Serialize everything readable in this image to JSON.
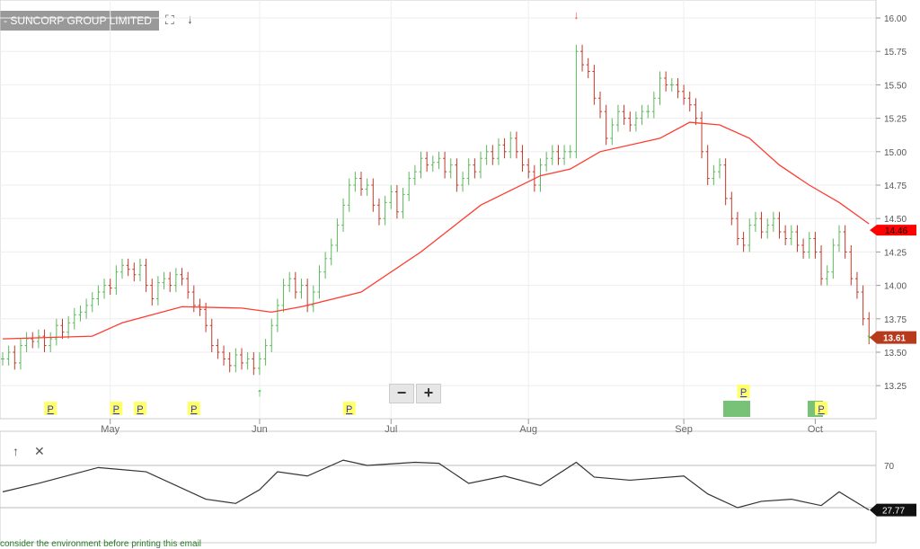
{
  "header": {
    "title": "- SUNCORP GROUP LIMITED",
    "icons": [
      "fullscreen-icon",
      "download-arrow-icon"
    ]
  },
  "zoom": {
    "minus": "−",
    "plus": "+"
  },
  "indicator_toolbar": {
    "icons": [
      "move-up-arrow-icon",
      "close-x-icon"
    ]
  },
  "footer": {
    "text": "consider the environment before printing this email"
  },
  "colors": {
    "up": "#5cb85c",
    "down": "#c0392b",
    "ma": "#ff3b30",
    "rsi": "#333333"
  },
  "chart_data": [
    {
      "type": "ohlc",
      "y_ticks": [
        "16.00",
        "15.75",
        "15.50",
        "15.25",
        "15.00",
        "14.75",
        "14.50",
        "14.25",
        "14.00",
        "13.75",
        "13.50",
        "13.25"
      ],
      "ylim": [
        13.0,
        16.0
      ],
      "x_ticks": [
        {
          "label": "May",
          "bar": 18
        },
        {
          "label": "Jun",
          "bar": 43
        },
        {
          "label": "Jul",
          "bar": 65
        },
        {
          "label": "Aug",
          "bar": 88
        },
        {
          "label": "Sep",
          "bar": 114
        },
        {
          "label": "Oct",
          "bar": 136
        }
      ],
      "close": [
        13.45,
        13.5,
        13.42,
        13.55,
        13.6,
        13.58,
        13.62,
        13.55,
        13.6,
        13.7,
        13.65,
        13.72,
        13.78,
        13.8,
        13.85,
        13.9,
        13.95,
        14.0,
        13.98,
        14.1,
        14.15,
        14.12,
        14.08,
        14.15,
        14.0,
        13.9,
        14.02,
        14.05,
        14.0,
        14.08,
        14.05,
        13.95,
        13.85,
        13.82,
        13.7,
        13.55,
        13.5,
        13.45,
        13.4,
        13.48,
        13.42,
        13.45,
        13.38,
        13.45,
        13.55,
        13.7,
        13.85,
        14.0,
        14.05,
        13.95,
        14.0,
        13.85,
        13.95,
        14.1,
        14.2,
        14.3,
        14.45,
        14.6,
        14.75,
        14.8,
        14.72,
        14.75,
        14.6,
        14.5,
        14.62,
        14.7,
        14.55,
        14.68,
        14.8,
        14.85,
        14.95,
        14.9,
        14.92,
        14.95,
        14.85,
        14.9,
        14.75,
        14.8,
        14.9,
        14.85,
        14.95,
        15.0,
        14.95,
        15.05,
        15.0,
        15.1,
        15.0,
        14.9,
        14.85,
        14.75,
        14.9,
        14.95,
        15.0,
        14.95,
        15.0,
        15.0,
        15.75,
        15.65,
        15.6,
        15.4,
        15.3,
        15.1,
        15.2,
        15.3,
        15.25,
        15.2,
        15.25,
        15.3,
        15.3,
        15.4,
        15.55,
        15.5,
        15.5,
        15.45,
        15.4,
        15.35,
        15.25,
        15.0,
        14.8,
        14.85,
        14.9,
        14.65,
        14.5,
        14.35,
        14.3,
        14.45,
        14.5,
        14.4,
        14.45,
        14.5,
        14.4,
        14.35,
        14.4,
        14.3,
        14.25,
        14.35,
        14.25,
        14.05,
        14.1,
        14.3,
        14.4,
        14.25,
        14.05,
        13.95,
        13.75,
        13.61
      ],
      "moving_average": [
        [
          0,
          13.6
        ],
        [
          15,
          13.62
        ],
        [
          20,
          13.72
        ],
        [
          30,
          13.84
        ],
        [
          40,
          13.83
        ],
        [
          45,
          13.8
        ],
        [
          50,
          13.84
        ],
        [
          60,
          13.95
        ],
        [
          70,
          14.25
        ],
        [
          80,
          14.6
        ],
        [
          90,
          14.82
        ],
        [
          95,
          14.87
        ],
        [
          100,
          15.0
        ],
        [
          110,
          15.1
        ],
        [
          115,
          15.22
        ],
        [
          120,
          15.2
        ],
        [
          125,
          15.1
        ],
        [
          130,
          14.9
        ],
        [
          135,
          14.75
        ],
        [
          140,
          14.62
        ],
        [
          145,
          14.46
        ]
      ],
      "ma_label": "14.46",
      "last_label": "13.61",
      "events": [
        {
          "label": "P",
          "bar": 8
        },
        {
          "label": "P",
          "bar": 19
        },
        {
          "label": "P",
          "bar": 23
        },
        {
          "label": "P",
          "bar": 32
        },
        {
          "label": "P",
          "bar": 58
        },
        {
          "label": "P",
          "bar": 124,
          "row": 2
        },
        {
          "label": "P",
          "bar": 137
        }
      ],
      "signals": [
        {
          "dir": "down",
          "bar": 96
        },
        {
          "dir": "up",
          "bar": 43
        },
        {
          "dir": "up",
          "bar": 145
        }
      ]
    },
    {
      "type": "line",
      "y_ticks": [
        "70"
      ],
      "levels": [
        70,
        30
      ],
      "rsi": [
        [
          0,
          45
        ],
        [
          6,
          53
        ],
        [
          16,
          68
        ],
        [
          24,
          64
        ],
        [
          34,
          38
        ],
        [
          39,
          34
        ],
        [
          43,
          47
        ],
        [
          46,
          64
        ],
        [
          51,
          60
        ],
        [
          57,
          75
        ],
        [
          61,
          70
        ],
        [
          69,
          73
        ],
        [
          73,
          72
        ],
        [
          78,
          53
        ],
        [
          84,
          60
        ],
        [
          90,
          51
        ],
        [
          96,
          73
        ],
        [
          99,
          59
        ],
        [
          105,
          56
        ],
        [
          114,
          60
        ],
        [
          118,
          43
        ],
        [
          123,
          30
        ],
        [
          127,
          36
        ],
        [
          132,
          38
        ],
        [
          137,
          32
        ],
        [
          140,
          45
        ],
        [
          145,
          27.77
        ]
      ],
      "last_label": "27.77"
    }
  ]
}
